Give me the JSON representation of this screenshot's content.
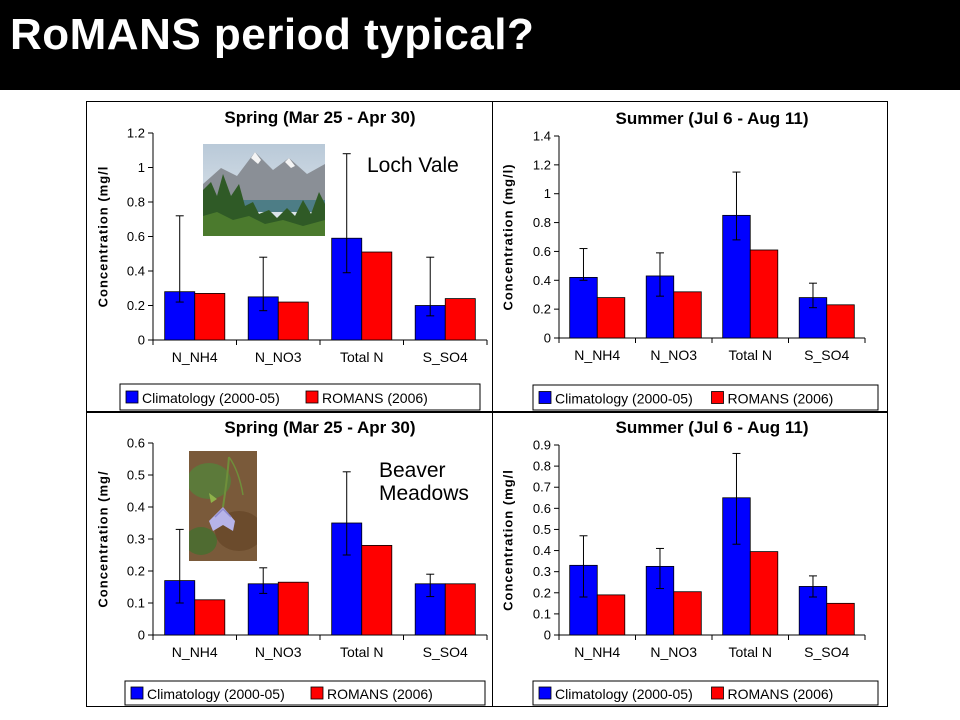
{
  "slide": {
    "title": "RoMANS period typical?"
  },
  "colors": {
    "climatology": "#0000FF",
    "romans": "#FF0000",
    "title_bar": "#000000"
  },
  "sites": [
    {
      "name_lines": [
        "Loch Vale"
      ],
      "photo": "mountain-lake-photo"
    },
    {
      "name_lines": [
        "Beaver",
        "Meadows"
      ],
      "photo": "bluebell-flower-photo"
    }
  ],
  "chart_data": [
    {
      "type": "bar",
      "title": "Spring (Mar 25 - Apr 30)",
      "ylabel": "Concentration (mg/l",
      "categories": [
        "N_NH4",
        "N_NO3",
        "Total N",
        "S_SO4"
      ],
      "ylim": [
        0,
        1.2
      ],
      "yticks": [
        "0",
        "0.2",
        "0.4",
        "0.6",
        "0.8",
        "1",
        "1.2"
      ],
      "legend": "bottom",
      "series": [
        {
          "name": "Climatology (2000-05)",
          "values": [
            0.28,
            0.25,
            0.59,
            0.2
          ],
          "error_low": [
            0.22,
            0.17,
            0.39,
            0.14
          ],
          "error_high": [
            0.72,
            0.48,
            1.08,
            0.48
          ]
        },
        {
          "name": "ROMANS (2006)",
          "values": [
            0.27,
            0.22,
            0.51,
            0.24
          ]
        }
      ]
    },
    {
      "type": "bar",
      "title": "Summer (Jul 6 - Aug 11)",
      "ylabel": "Concentration (mg/l)",
      "categories": [
        "N_NH4",
        "N_NO3",
        "Total N",
        "S_SO4"
      ],
      "ylim": [
        0,
        1.4
      ],
      "yticks": [
        "0",
        "0.2",
        "0.4",
        "0.6",
        "0.8",
        "1",
        "1.2",
        "1.4"
      ],
      "legend": "bottom",
      "series": [
        {
          "name": "Climatology (2000-05)",
          "values": [
            0.42,
            0.43,
            0.85,
            0.28
          ],
          "error_low": [
            0.4,
            0.29,
            0.68,
            0.21
          ],
          "error_high": [
            0.62,
            0.59,
            1.15,
            0.38
          ]
        },
        {
          "name": "ROMANS (2006)",
          "values": [
            0.28,
            0.32,
            0.61,
            0.23
          ]
        }
      ]
    },
    {
      "type": "bar",
      "title": "Spring (Mar 25 - Apr 30)",
      "ylabel": "Concentration (mg/",
      "categories": [
        "N_NH4",
        "N_NO3",
        "Total N",
        "S_SO4"
      ],
      "ylim": [
        0,
        0.6
      ],
      "yticks": [
        "0",
        "0.1",
        "0.2",
        "0.3",
        "0.4",
        "0.5",
        "0.6"
      ],
      "legend": "bottom",
      "series": [
        {
          "name": "Climatology (2000-05)",
          "values": [
            0.17,
            0.16,
            0.35,
            0.16
          ],
          "error_low": [
            0.1,
            0.13,
            0.25,
            0.12
          ],
          "error_high": [
            0.33,
            0.21,
            0.51,
            0.19
          ]
        },
        {
          "name": "ROMANS (2006)",
          "values": [
            0.11,
            0.165,
            0.28,
            0.16
          ]
        }
      ]
    },
    {
      "type": "bar",
      "title": "Summer (Jul 6 - Aug 11)",
      "ylabel": "Concentration (mg/l",
      "categories": [
        "N_NH4",
        "N_NO3",
        "Total N",
        "S_SO4"
      ],
      "ylim": [
        0,
        0.9
      ],
      "yticks": [
        "0",
        "0.1",
        "0.2",
        "0.3",
        "0.4",
        "0.5",
        "0.6",
        "0.7",
        "0.8",
        "0.9"
      ],
      "legend": "bottom",
      "series": [
        {
          "name": "Climatology (2000-05)",
          "values": [
            0.33,
            0.325,
            0.65,
            0.23
          ],
          "error_low": [
            0.18,
            0.22,
            0.43,
            0.18
          ],
          "error_high": [
            0.47,
            0.41,
            0.86,
            0.28
          ]
        },
        {
          "name": "ROMANS (2006)",
          "values": [
            0.19,
            0.205,
            0.395,
            0.15
          ]
        }
      ]
    }
  ]
}
